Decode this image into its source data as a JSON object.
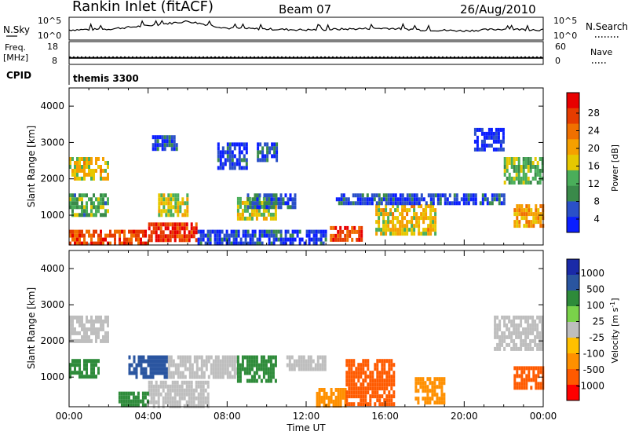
{
  "header": {
    "station": "Rankin Inlet (fitACF)",
    "beam": "Beam 07",
    "date": "26/Aug/2010"
  },
  "colors": {
    "power_scale": [
      "#0a1eff",
      "#2a50c8",
      "#3a8a4a",
      "#4aae5a",
      "#e6c800",
      "#f5a000",
      "#f07000",
      "#e63c00",
      "#e80000"
    ],
    "velocity_scale": [
      "#ff0000",
      "#ff5a00",
      "#ff9000",
      "#ffc000",
      "#bebebe",
      "#7ad24a",
      "#2e8b3a",
      "#2a55a0",
      "#1a2aa8"
    ],
    "ground_scatter": "#bebebe"
  },
  "chart_data": [
    {
      "type": "line",
      "panel": "noise",
      "left_label": "N.Sky",
      "right_label": "N.Search",
      "left_ticks": [
        "10^5",
        "10^0"
      ],
      "right_ticks": [
        "10^5",
        "10^0"
      ],
      "x": [
        "00:00",
        "02:00",
        "04:00",
        "05:00",
        "08:00",
        "10:00",
        "12:00",
        "14:00",
        "16:00",
        "18:00",
        "20:00",
        "22:00",
        "00:00"
      ],
      "series": [
        {
          "values": [
            0.45,
            0.5,
            0.7,
            0.95,
            0.55,
            0.5,
            0.45,
            0.5,
            0.55,
            0.45,
            0.4,
            0.5,
            0.45
          ]
        }
      ]
    },
    {
      "type": "line",
      "panel": "frequency",
      "left_label_lines": [
        "Freq.",
        "[MHz]"
      ],
      "right_label": "Nave",
      "left_ticks": [
        "18",
        "8"
      ],
      "right_ticks": [
        "60",
        "0"
      ],
      "ylim_left": [
        8,
        18
      ],
      "ylim_right": [
        0,
        60
      ],
      "frequency_mhz": 10.5,
      "nave": 18
    },
    {
      "type": "table",
      "panel": "cpid",
      "label": "CPID",
      "program": "themis 3300"
    },
    {
      "type": "heatmap",
      "panel": "power",
      "ylabel": "Slant Range [km]",
      "yticks": [
        "4000",
        "3000",
        "2000",
        "1000"
      ],
      "ylim": [
        180,
        4500
      ],
      "xticks": [
        "00:00",
        "04:00",
        "08:00",
        "12:00",
        "16:00",
        "20:00",
        "00:00"
      ],
      "xlim_hours": [
        0,
        24
      ],
      "colorbar_label": "Power [dB]",
      "colorbar_ticks": [
        "28",
        "24",
        "20",
        "16",
        "12",
        "8",
        "4"
      ],
      "regions": [
        {
          "t": [
            0.0,
            4.0
          ],
          "r": [
            180,
            600
          ],
          "value": 26
        },
        {
          "t": [
            4.0,
            6.5
          ],
          "r": [
            300,
            800
          ],
          "value": 28
        },
        {
          "t": [
            13.2,
            14.8
          ],
          "r": [
            300,
            700
          ],
          "value": 26
        },
        {
          "t": [
            0.0,
            2.0
          ],
          "r": [
            2000,
            2600
          ],
          "value": 18
        },
        {
          "t": [
            22.0,
            24.0
          ],
          "r": [
            1900,
            2600
          ],
          "value": 14
        },
        {
          "t": [
            22.5,
            24.0
          ],
          "r": [
            700,
            1300
          ],
          "value": 20
        },
        {
          "t": [
            8.5,
            10.5
          ],
          "r": [
            900,
            1500
          ],
          "value": 16
        },
        {
          "t": [
            15.5,
            18.5
          ],
          "r": [
            500,
            1300
          ],
          "value": 18
        },
        {
          "t": [
            0.0,
            2.0
          ],
          "r": [
            1000,
            1600
          ],
          "value": 12
        },
        {
          "t": [
            4.5,
            6.0
          ],
          "r": [
            1000,
            1600
          ],
          "value": 16
        },
        {
          "t": [
            9.0,
            11.5
          ],
          "r": [
            1200,
            1600
          ],
          "value": 8
        },
        {
          "t": [
            13.5,
            22.0
          ],
          "r": [
            1300,
            1600
          ],
          "value": 6
        },
        {
          "t": [
            7.5,
            9.0
          ],
          "r": [
            2300,
            3000
          ],
          "value": 6
        },
        {
          "t": [
            4.2,
            5.5
          ],
          "r": [
            2800,
            3200
          ],
          "value": 6
        },
        {
          "t": [
            9.5,
            10.5
          ],
          "r": [
            2500,
            3000
          ],
          "value": 6
        },
        {
          "t": [
            20.5,
            22.0
          ],
          "r": [
            2800,
            3400
          ],
          "value": 4
        },
        {
          "t": [
            6.5,
            13.0
          ],
          "r": [
            180,
            600
          ],
          "value": 6
        }
      ]
    },
    {
      "type": "heatmap",
      "panel": "velocity",
      "ylabel": "Slant Range [km]",
      "yticks": [
        "4000",
        "3000",
        "2000",
        "1000"
      ],
      "ylim": [
        180,
        4500
      ],
      "xticks": [
        "00:00",
        "04:00",
        "08:00",
        "12:00",
        "16:00",
        "20:00",
        "00:00"
      ],
      "xlim_hours": [
        0,
        24
      ],
      "xlabel": "Time UT",
      "colorbar_label": "Velocity [m s^-1]",
      "colorbar_ticks": [
        "1000",
        "500",
        "100",
        "25",
        "-25",
        "-100",
        "-500",
        "-1000"
      ],
      "regions": [
        {
          "t": [
            0.0,
            2.0
          ],
          "r": [
            2000,
            2700
          ],
          "value": 0
        },
        {
          "t": [
            21.5,
            24.0
          ],
          "r": [
            1800,
            2700
          ],
          "value": 0
        },
        {
          "t": [
            4.0,
            7.0
          ],
          "r": [
            180,
            900
          ],
          "value": 0
        },
        {
          "t": [
            0.0,
            1.5
          ],
          "r": [
            1000,
            1500
          ],
          "value": 100
        },
        {
          "t": [
            3.0,
            5.0
          ],
          "r": [
            1000,
            1600
          ],
          "value": 500
        },
        {
          "t": [
            5.0,
            8.5
          ],
          "r": [
            1000,
            1600
          ],
          "value": 0
        },
        {
          "t": [
            8.5,
            10.5
          ],
          "r": [
            900,
            1600
          ],
          "value": 100
        },
        {
          "t": [
            12.5,
            14.0
          ],
          "r": [
            180,
            700
          ],
          "value": -100
        },
        {
          "t": [
            14.0,
            16.5
          ],
          "r": [
            300,
            1500
          ],
          "value": -500
        },
        {
          "t": [
            17.5,
            19.0
          ],
          "r": [
            300,
            1000
          ],
          "value": -100
        },
        {
          "t": [
            22.5,
            24.0
          ],
          "r": [
            700,
            1300
          ],
          "value": -500
        },
        {
          "t": [
            11.0,
            13.0
          ],
          "r": [
            1200,
            1600
          ],
          "value": 0
        },
        {
          "t": [
            2.5,
            4.0
          ],
          "r": [
            180,
            600
          ],
          "value": 100
        }
      ]
    }
  ]
}
